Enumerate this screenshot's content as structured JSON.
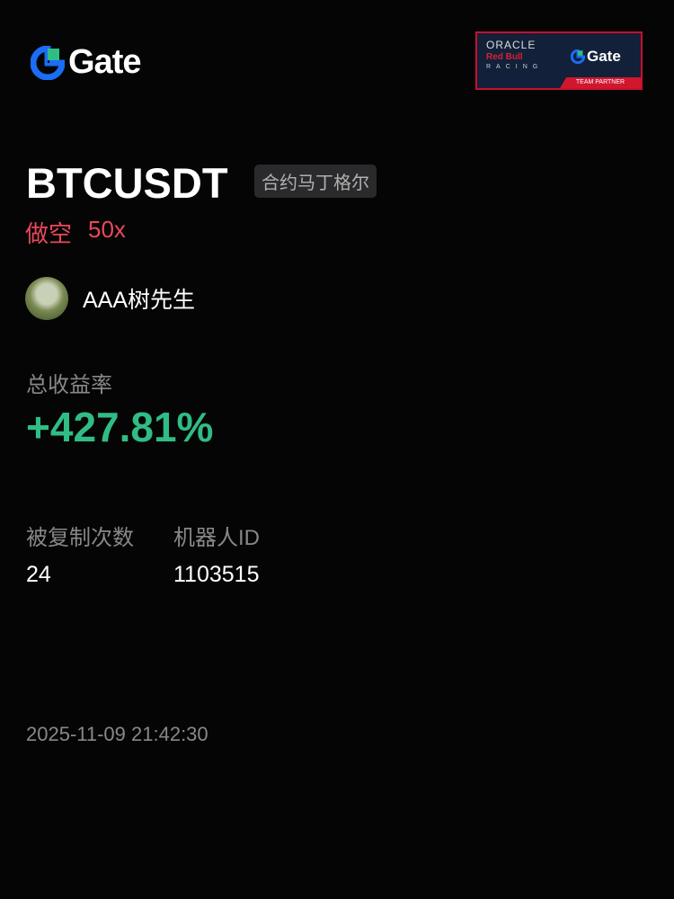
{
  "brand": {
    "name": "Gate",
    "accent": "#1a6df5",
    "green": "#2fbd85"
  },
  "partner_badge": {
    "line1": "ORACLE",
    "line2": "Red Bull",
    "line3": "RACING",
    "brand": "Gate",
    "footer": "TEAM PARTNER"
  },
  "position": {
    "symbol": "BTCUSDT",
    "strategy_tag": "合约马丁格尔",
    "side": "做空",
    "leverage": "50x",
    "side_color": "#e8485a"
  },
  "trader": {
    "name": "AAA树先生"
  },
  "roi": {
    "label": "总收益率",
    "value": "+427.81%"
  },
  "stats": [
    {
      "label": "被复制次数",
      "value": "24"
    },
    {
      "label": "机器人ID",
      "value": "1103515"
    }
  ],
  "timestamp": "2025-11-09 21:42:30"
}
